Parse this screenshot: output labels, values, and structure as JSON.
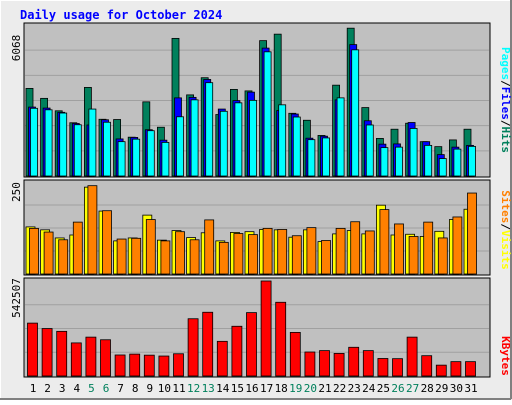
{
  "title": "Daily usage for October 2024",
  "colors": {
    "background": "#ececec",
    "plot_bg": "#c0c0c0",
    "title": "#0000ff",
    "hits": "#00805c",
    "files": "#0000ff",
    "pages": "#00ffff",
    "visits": "#ffff00",
    "sites": "#ff8000",
    "kbytes": "#ff0000",
    "weekend_label": "#00805c",
    "weekday_label": "#000000"
  },
  "legend_top": {
    "pages": "Pages",
    "sep1": "/",
    "files": "Files",
    "sep2": "/",
    "hits": "Hits"
  },
  "legend_mid": {
    "sites": "Sites",
    "sep1": "/",
    "visits": "Visits"
  },
  "legend_bottom": {
    "kbytes": "KBytes"
  },
  "chart_data": [
    {
      "type": "bar",
      "title": "Daily usage for October 2024",
      "categories": [
        "1",
        "2",
        "3",
        "4",
        "5",
        "6",
        "7",
        "8",
        "9",
        "10",
        "11",
        "12",
        "13",
        "14",
        "15",
        "16",
        "17",
        "18",
        "19",
        "20",
        "21",
        "22",
        "23",
        "24",
        "25",
        "26",
        "27",
        "28",
        "29",
        "30",
        "31"
      ],
      "weekend_days": [
        5,
        6,
        12,
        13,
        19,
        20,
        26,
        27
      ],
      "ymax_label": "6068",
      "ylim": [
        0,
        6068
      ],
      "series": [
        {
          "name": "Hits",
          "values": [
            3520,
            3120,
            2620,
            2140,
            3560,
            2280,
            2270,
            1560,
            2980,
            1960,
            5530,
            3260,
            3950,
            2470,
            3480,
            3420,
            5440,
            5700,
            2520,
            2240,
            1630,
            3650,
            5940,
            2750,
            1510,
            1880,
            2120,
            1380,
            1180,
            1450,
            1880
          ]
        },
        {
          "name": "Files",
          "values": [
            2770,
            2730,
            2560,
            2110,
            2050,
            2260,
            1490,
            1550,
            1860,
            1440,
            3140,
            3160,
            3880,
            2690,
            3030,
            3370,
            5140,
            2630,
            2490,
            1520,
            1600,
            3060,
            5280,
            2220,
            1280,
            1290,
            2150,
            1380,
            860,
            1160,
            1230
          ]
        },
        {
          "name": "Pages",
          "values": [
            2720,
            2660,
            2530,
            2060,
            2690,
            2160,
            1380,
            1480,
            1820,
            1350,
            2380,
            3060,
            3750,
            2600,
            2940,
            3040,
            4990,
            2860,
            2370,
            1460,
            1530,
            3140,
            5070,
            2050,
            1140,
            1160,
            1910,
            1230,
            700,
            1080,
            1190
          ]
        }
      ]
    },
    {
      "type": "bar",
      "ymax_label": "250",
      "ylim": [
        0,
        250
      ],
      "series": [
        {
          "name": "Visits",
          "values": [
            128,
            120,
            98,
            106,
            236,
            171,
            90,
            98,
            160,
            92,
            118,
            99,
            112,
            90,
            113,
            115,
            121,
            120,
            100,
            120,
            88,
            109,
            118,
            109,
            187,
            106,
            108,
            102,
            116,
            148,
            176
          ]
        },
        {
          "name": "Sites",
          "values": [
            124,
            114,
            93,
            141,
            240,
            172,
            95,
            97,
            148,
            90,
            115,
            93,
            147,
            86,
            110,
            107,
            124,
            121,
            104,
            126,
            91,
            124,
            142,
            117,
            175,
            136,
            102,
            141,
            98,
            155,
            220
          ]
        }
      ]
    },
    {
      "type": "bar",
      "ymax_label": "542507",
      "ylim": [
        0,
        542507
      ],
      "series": [
        {
          "name": "KBytes",
          "values": [
            302000,
            271000,
            255000,
            189000,
            222000,
            207000,
            120000,
            125000,
            119000,
            114000,
            127000,
            327000,
            364000,
            198000,
            284000,
            362000,
            542507,
            421000,
            249000,
            137000,
            145000,
            129000,
            164000,
            145000,
            100000,
            99000,
            222000,
            116000,
            62000,
            82000,
            82000
          ]
        }
      ]
    }
  ]
}
